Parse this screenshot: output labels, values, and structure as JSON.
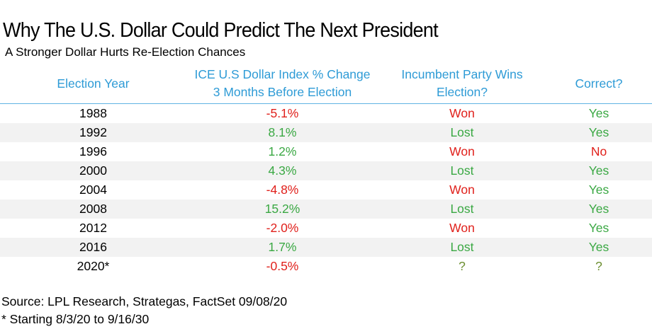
{
  "chart_data": {
    "type": "table",
    "title": "Why The U.S. Dollar Could Predict The Next President",
    "subtitle": "A Stronger Dollar Hurts Re-Election Chances",
    "columns": [
      "Election Year",
      "ICE U.S Dollar Index % Change 3 Months Before Election",
      "Incumbent Party Wins Election?",
      "Correct?"
    ],
    "rows": [
      {
        "year": "1988",
        "change": "-5.1%",
        "change_value": -5.1,
        "incumbent": "Won",
        "correct": "Yes"
      },
      {
        "year": "1992",
        "change": "8.1%",
        "change_value": 8.1,
        "incumbent": "Lost",
        "correct": "Yes"
      },
      {
        "year": "1996",
        "change": "1.2%",
        "change_value": 1.2,
        "incumbent": "Won",
        "correct": "No"
      },
      {
        "year": "2000",
        "change": "4.3%",
        "change_value": 4.3,
        "incumbent": "Lost",
        "correct": "Yes"
      },
      {
        "year": "2004",
        "change": "-4.8%",
        "change_value": -4.8,
        "incumbent": "Won",
        "correct": "Yes"
      },
      {
        "year": "2008",
        "change": "15.2%",
        "change_value": 15.2,
        "incumbent": "Lost",
        "correct": "Yes"
      },
      {
        "year": "2012",
        "change": "-2.0%",
        "change_value": -2.0,
        "incumbent": "Won",
        "correct": "Yes"
      },
      {
        "year": "2016",
        "change": "1.7%",
        "change_value": 1.7,
        "incumbent": "Lost",
        "correct": "Yes"
      },
      {
        "year": "2020*",
        "change": "-0.5%",
        "change_value": -0.5,
        "incumbent": "?",
        "correct": "?"
      }
    ],
    "source": "Source: LPL Research, Strategas, FactSet 09/08/20",
    "footnote": "* Starting 8/3/20 to 9/16/30"
  },
  "colors": {
    "header": "#2e9bd6",
    "negative": "#e0201b",
    "positive": "#3aa843",
    "unknown": "#6b8e2f",
    "stripe": "#f2f2f2"
  }
}
